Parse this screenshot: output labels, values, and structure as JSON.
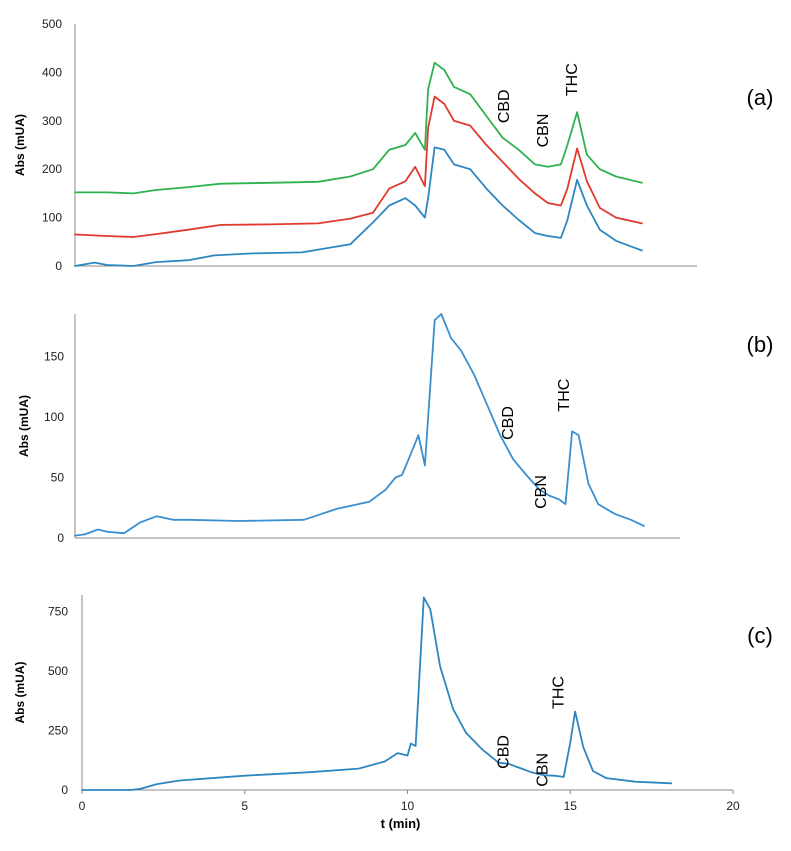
{
  "chart_data": [
    {
      "type": "line",
      "panel_label": "(a)",
      "ylabel": "Abs (mUA)",
      "xlabel": "",
      "ylim": [
        0,
        500
      ],
      "yticks": [
        "0",
        "100",
        "200",
        "300",
        "400",
        "500"
      ],
      "xlim": [
        0,
        19.2
      ],
      "xticks": [],
      "grid": false,
      "annotations": [
        {
          "text": "CBD",
          "x": 13.4,
          "y": 330
        },
        {
          "text": "CBN",
          "x": 14.6,
          "y": 280
        },
        {
          "text": "THC",
          "x": 15.5,
          "y": 385
        }
      ],
      "series": [
        {
          "color": "#2e86c1",
          "x": [
            0,
            0.6,
            1,
            1.8,
            2.5,
            3.5,
            4.3,
            5.5,
            7,
            8.5,
            9.2,
            9.7,
            10.2,
            10.5,
            10.8,
            10.9,
            11.1,
            11.4,
            11.7,
            12.2,
            12.7,
            13.2,
            13.7,
            14.2,
            14.6,
            15.0,
            15.2,
            15.5,
            15.8,
            16.2,
            16.7,
            17.5
          ],
          "y": [
            0,
            7,
            2,
            0,
            8,
            12,
            22,
            26,
            28,
            45,
            90,
            125,
            140,
            125,
            100,
            140,
            245,
            240,
            210,
            200,
            160,
            125,
            95,
            68,
            62,
            58,
            95,
            178,
            125,
            75,
            52,
            32
          ]
        },
        {
          "color": "#e03a2f",
          "x": [
            0,
            1,
            1.8,
            2.5,
            3.5,
            4.5,
            6,
            7.5,
            8.5,
            9.2,
            9.7,
            10.2,
            10.5,
            10.8,
            10.9,
            11.1,
            11.4,
            11.7,
            12.2,
            12.7,
            13.2,
            13.7,
            14.2,
            14.6,
            15.0,
            15.2,
            15.5,
            15.8,
            16.2,
            16.7,
            17.5
          ],
          "y": [
            65,
            62,
            60,
            66,
            75,
            85,
            86,
            88,
            98,
            110,
            160,
            175,
            205,
            165,
            285,
            350,
            335,
            300,
            290,
            250,
            215,
            180,
            150,
            130,
            125,
            160,
            243,
            175,
            120,
            100,
            88
          ]
        },
        {
          "color": "#2eb24f",
          "x": [
            0,
            1,
            1.8,
            2.5,
            3.5,
            4.5,
            6,
            7.5,
            8.5,
            9.2,
            9.7,
            10.2,
            10.5,
            10.8,
            10.9,
            11.1,
            11.4,
            11.7,
            12.2,
            12.7,
            13.2,
            13.7,
            14.2,
            14.6,
            15.0,
            15.2,
            15.5,
            15.8,
            16.2,
            16.7,
            17.5
          ],
          "y": [
            152,
            152,
            150,
            157,
            163,
            170,
            172,
            174,
            185,
            200,
            240,
            250,
            275,
            240,
            365,
            420,
            405,
            370,
            355,
            310,
            265,
            240,
            210,
            205,
            210,
            250,
            318,
            230,
            200,
            185,
            172
          ]
        }
      ]
    },
    {
      "type": "line",
      "panel_label": "(b)",
      "ylabel": "Abs (mUA)",
      "xlabel": "",
      "ylim": [
        0,
        185
      ],
      "yticks": [
        "0",
        "50",
        "100",
        "150"
      ],
      "xlim": [
        0,
        18.5
      ],
      "xticks": [],
      "grid": false,
      "annotations": [
        {
          "text": "CBD",
          "x": 13.4,
          "y": 95
        },
        {
          "text": "CBN",
          "x": 14.4,
          "y": 38
        },
        {
          "text": "THC",
          "x": 15.1,
          "y": 118
        }
      ],
      "series": [
        {
          "color": "#3a8fd0",
          "x": [
            0,
            0.3,
            0.7,
            1.0,
            1.5,
            2.0,
            2.5,
            3.0,
            3.5,
            5,
            7,
            8,
            9,
            9.5,
            9.8,
            10.0,
            10.2,
            10.5,
            10.7,
            11.0,
            11.2,
            11.5,
            11.8,
            12.2,
            12.6,
            13.0,
            13.4,
            13.8,
            14.2,
            14.5,
            14.8,
            15.0,
            15.2,
            15.4,
            15.7,
            16.0,
            16.5,
            17.0,
            17.4
          ],
          "y": [
            2,
            3,
            7,
            5,
            4,
            13,
            18,
            15,
            15,
            14,
            15,
            24,
            30,
            40,
            50,
            52,
            65,
            85,
            60,
            180,
            185,
            165,
            155,
            135,
            110,
            85,
            65,
            52,
            40,
            35,
            32,
            28,
            88,
            85,
            45,
            28,
            20,
            15,
            10
          ]
        }
      ]
    },
    {
      "type": "line",
      "panel_label": "(c)",
      "ylabel": "Abs (mUA)",
      "xlabel": "t (min)",
      "ylim": [
        0,
        820
      ],
      "yticks": [
        "0",
        "250",
        "500",
        "750"
      ],
      "xlim": [
        0,
        20
      ],
      "xticks": [
        "0",
        "5",
        "10",
        "15",
        "20"
      ],
      "grid": false,
      "annotations": [
        {
          "text": "CBD",
          "x": 13.1,
          "y": 160
        },
        {
          "text": "CBN",
          "x": 14.3,
          "y": 85
        },
        {
          "text": "THC",
          "x": 14.8,
          "y": 410
        }
      ],
      "series": [
        {
          "color": "#2e86c1",
          "x": [
            0,
            1.5,
            1.8,
            2.3,
            3,
            5,
            7,
            8.5,
            9.3,
            9.7,
            10.0,
            10.1,
            10.25,
            10.5,
            10.7,
            11.0,
            11.4,
            11.8,
            12.3,
            12.8,
            13.1,
            13.4,
            13.8,
            14.2,
            14.5,
            14.8,
            15.0,
            15.15,
            15.4,
            15.7,
            16.1,
            17,
            18.1
          ],
          "y": [
            0,
            0,
            5,
            25,
            40,
            60,
            75,
            90,
            120,
            155,
            145,
            195,
            185,
            810,
            760,
            520,
            340,
            240,
            170,
            115,
            110,
            95,
            75,
            62,
            60,
            55,
            200,
            330,
            180,
            80,
            50,
            35,
            28
          ]
        }
      ]
    }
  ]
}
